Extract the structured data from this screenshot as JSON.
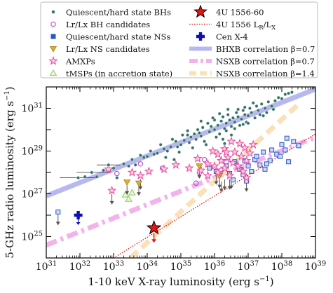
{
  "chart_data": {
    "type": "scatter",
    "xlabel_main": "1-10 keV X-ray luminosity (erg s",
    "xlabel_sup": "−1",
    "xlabel_end": ")",
    "ylabel_main": "5-GHz radio luminosity (erg s",
    "ylabel_sup": "−1",
    "ylabel_end": ")",
    "xlog": true,
    "ylog": true,
    "xlim_exp": [
      31,
      39
    ],
    "ylim_exp": [
      24,
      32
    ],
    "x_ticks": [
      {
        "exp": 31,
        "label": "31"
      },
      {
        "exp": 32,
        "label": "32"
      },
      {
        "exp": 33,
        "label": "33"
      },
      {
        "exp": 34,
        "label": "34"
      },
      {
        "exp": 35,
        "label": "35"
      },
      {
        "exp": 36,
        "label": "36"
      },
      {
        "exp": 37,
        "label": "37"
      },
      {
        "exp": 38,
        "label": "38"
      },
      {
        "exp": 39,
        "label": "39"
      }
    ],
    "y_ticks": [
      {
        "exp": 25,
        "label": "25"
      },
      {
        "exp": 27,
        "label": "27"
      },
      {
        "exp": 29,
        "label": "29"
      },
      {
        "exp": 31,
        "label": "31"
      }
    ],
    "tick_base": "10",
    "legend": {
      "placement": "top, above plot",
      "left_col": [
        {
          "key": "bh",
          "label": "Quiescent/hard state BHs"
        },
        {
          "key": "bhc",
          "label": "Lr/Lx BH candidates"
        },
        {
          "key": "ns",
          "label": "Quiescent/hard state NSs"
        },
        {
          "key": "nsc",
          "label": "Lr/Lx NS candidates"
        },
        {
          "key": "amxp",
          "label": "AMXPs"
        },
        {
          "key": "tmsp",
          "label": "tMSPs (in accretion state)"
        }
      ],
      "right_col": [
        {
          "key": "star",
          "label": "4U 1556-60"
        },
        {
          "key": "ratio",
          "label_main": "4U 1556 L",
          "label_r": "R",
          "label_slash": "/L",
          "label_x": "X"
        },
        {
          "key": "cen",
          "label": "Cen X-4"
        },
        {
          "key": "bhxb",
          "label": "BHXB correlation β=0.7"
        },
        {
          "key": "nsxb07",
          "label": "NSXB correlation β=0.7"
        },
        {
          "key": "nsxb14",
          "label": "NSXB correlation β=1.4"
        }
      ]
    },
    "colors": {
      "bh_fill": "#3d6b66",
      "bh_edge": "#bfe6e2",
      "bhc": "#b040c0",
      "ns": "#2a55cc",
      "ns_fill": "#cdd9f5",
      "nsc": "#e0b020",
      "amxp": "#ee4499",
      "tmsp": "#8ccc55",
      "star_fill": "#e01818",
      "ratio_line": "#e81010",
      "cen": "#1010b0",
      "bhxb": "#b8b8f0",
      "nsxb07": "#f4b2ec",
      "nsxb14": "#fbe0b8",
      "arrow": "#555555"
    },
    "lines": [
      {
        "key": "bhxb",
        "beta": 0.7,
        "points": [
          [
            31.0,
            26.9
          ],
          [
            39.0,
            31.9
          ]
        ]
      },
      {
        "key": "nsxb07",
        "beta": 0.7,
        "points": [
          [
            31.0,
            24.6
          ],
          [
            39.0,
            29.65
          ]
        ]
      },
      {
        "key": "nsxb14",
        "beta": 1.4,
        "points": [
          [
            33.5,
            24.0
          ],
          [
            38.5,
            31.2
          ]
        ]
      },
      {
        "key": "ratio",
        "points": [
          [
            33.0,
            24.0
          ],
          [
            39.0,
            29.8
          ]
        ]
      }
    ],
    "series": {
      "bh": [
        [
          31.95,
          27.75
        ],
        [
          32.15,
          27.8
        ],
        [
          32.35,
          28.0
        ],
        [
          32.5,
          27.8
        ],
        [
          32.7,
          28.1
        ],
        [
          32.85,
          28.35
        ],
        [
          33.0,
          28.2
        ],
        [
          33.1,
          27.75
        ],
        [
          33.3,
          28.4
        ],
        [
          33.45,
          28.3
        ],
        [
          33.55,
          28.6
        ],
        [
          33.65,
          28.35
        ],
        [
          33.8,
          28.8
        ],
        [
          33.9,
          28.7
        ],
        [
          34.0,
          28.75
        ],
        [
          34.1,
          29.0
        ],
        [
          34.2,
          28.85
        ],
        [
          34.3,
          28.9
        ],
        [
          34.4,
          29.3
        ],
        [
          34.5,
          29.1
        ],
        [
          34.6,
          29.0
        ],
        [
          34.7,
          29.2
        ],
        [
          34.75,
          29.55
        ],
        [
          34.85,
          29.45
        ],
        [
          34.9,
          29.2
        ],
        [
          35.0,
          29.3
        ],
        [
          35.1,
          29.5
        ],
        [
          35.2,
          29.75
        ],
        [
          35.25,
          29.4
        ],
        [
          35.3,
          29.65
        ],
        [
          35.4,
          29.8
        ],
        [
          35.45,
          29.55
        ],
        [
          35.5,
          30.0
        ],
        [
          35.6,
          29.7
        ],
        [
          35.65,
          30.1
        ],
        [
          35.7,
          29.45
        ],
        [
          35.8,
          30.3
        ],
        [
          35.85,
          29.9
        ],
        [
          35.9,
          30.15
        ],
        [
          36.0,
          30.0
        ],
        [
          36.0,
          30.45
        ],
        [
          36.1,
          30.2
        ],
        [
          36.15,
          29.8
        ],
        [
          36.2,
          30.4
        ],
        [
          36.25,
          30.6
        ],
        [
          36.3,
          30.05
        ],
        [
          36.35,
          30.3
        ],
        [
          36.4,
          30.7
        ],
        [
          36.45,
          30.45
        ],
        [
          36.5,
          30.15
        ],
        [
          36.55,
          30.55
        ],
        [
          36.6,
          30.35
        ],
        [
          36.65,
          30.8
        ],
        [
          36.7,
          30.6
        ],
        [
          36.75,
          30.2
        ],
        [
          36.8,
          30.5
        ],
        [
          36.85,
          30.9
        ],
        [
          36.9,
          30.7
        ],
        [
          36.95,
          30.35
        ],
        [
          37.0,
          30.65
        ],
        [
          37.05,
          31.0
        ],
        [
          37.1,
          30.8
        ],
        [
          37.2,
          30.55
        ],
        [
          37.25,
          31.1
        ],
        [
          37.3,
          30.9
        ],
        [
          37.35,
          30.7
        ],
        [
          37.4,
          31.2
        ],
        [
          37.5,
          31.0
        ],
        [
          37.55,
          30.8
        ],
        [
          37.6,
          31.3
        ],
        [
          37.7,
          31.1
        ],
        [
          37.8,
          31.35
        ],
        [
          37.9,
          31.5
        ],
        [
          38.0,
          31.45
        ],
        [
          38.1,
          31.65
        ],
        [
          38.2,
          31.7
        ],
        [
          38.3,
          31.75
        ],
        [
          35.2,
          29.95
        ],
        [
          35.55,
          29.85
        ],
        [
          35.95,
          30.55
        ],
        [
          36.05,
          29.65
        ],
        [
          36.35,
          29.95
        ],
        [
          36.6,
          30.05
        ],
        [
          36.4,
          30.95
        ],
        [
          36.9,
          31.05
        ],
        [
          37.15,
          31.25
        ],
        [
          37.45,
          30.65
        ],
        [
          37.75,
          30.95
        ],
        [
          36.25,
          29.55
        ],
        [
          35.75,
          29.3
        ],
        [
          35.35,
          29.15
        ],
        [
          34.95,
          28.95
        ],
        [
          34.55,
          28.7
        ],
        [
          35.05,
          29.75
        ],
        [
          36.7,
          30.95
        ],
        [
          36.15,
          30.75
        ],
        [
          36.5,
          29.75
        ],
        [
          36.85,
          30.25
        ],
        [
          37.0,
          30.3
        ],
        [
          36.3,
          29.35
        ],
        [
          35.6,
          30.4
        ],
        [
          34.8,
          28.6
        ]
      ],
      "bh_xerr": [
        [
          31.95,
          27.75,
          31.4,
          32.55
        ],
        [
          32.35,
          28.0,
          31.9,
          32.9
        ],
        [
          32.85,
          28.35,
          32.5,
          33.2
        ]
      ],
      "bhc": [
        [
          33.8,
          28.4
        ],
        [
          34.45,
          28.2
        ],
        [
          35.7,
          28.6
        ],
        [
          36.2,
          28.1
        ],
        [
          36.35,
          28.5
        ],
        [
          35.55,
          28.0
        ],
        [
          35.45,
          27.5
        ],
        [
          33.1,
          27.95
        ]
      ],
      "ns": [
        [
          36.35,
          28.3
        ],
        [
          36.45,
          27.95
        ],
        [
          36.6,
          28.5
        ],
        [
          36.75,
          28.15
        ],
        [
          36.85,
          27.9
        ],
        [
          36.9,
          28.55
        ],
        [
          37.0,
          28.3
        ],
        [
          37.1,
          28.05
        ],
        [
          37.2,
          28.6
        ],
        [
          37.25,
          28.75
        ],
        [
          37.35,
          28.35
        ],
        [
          37.45,
          28.95
        ],
        [
          37.5,
          28.15
        ],
        [
          37.65,
          28.55
        ],
        [
          37.7,
          29.05
        ],
        [
          37.85,
          28.85
        ],
        [
          38.0,
          29.3
        ],
        [
          38.1,
          29.05
        ],
        [
          38.2,
          28.5
        ],
        [
          38.35,
          29.45
        ],
        [
          38.5,
          29.25
        ],
        [
          36.55,
          27.65
        ],
        [
          36.95,
          27.6
        ],
        [
          35.85,
          28.2
        ],
        [
          36.05,
          28.05
        ],
        [
          37.55,
          28.4
        ],
        [
          38.15,
          29.6
        ],
        [
          37.95,
          28.75
        ],
        [
          31.35,
          26.15
        ]
      ],
      "ns_uplim": [
        [
          31.35,
          26.15
        ],
        [
          36.05,
          28.05
        ],
        [
          36.2,
          27.7
        ],
        [
          36.3,
          27.8
        ],
        [
          36.5,
          27.85
        ]
      ],
      "nsc": [
        [
          33.4,
          27.55
        ],
        [
          33.75,
          27.5
        ],
        [
          35.55,
          28.3
        ],
        [
          36.15,
          27.85
        ]
      ],
      "amxp": [
        [
          33.55,
          28.0
        ],
        [
          33.8,
          27.85
        ],
        [
          34.05,
          28.05
        ],
        [
          34.5,
          28.15
        ],
        [
          34.85,
          28.35
        ],
        [
          35.25,
          28.2
        ],
        [
          35.6,
          28.1
        ],
        [
          35.8,
          28.4
        ],
        [
          36.0,
          28.3
        ],
        [
          36.1,
          28.0
        ],
        [
          36.2,
          28.55
        ],
        [
          36.3,
          28.2
        ],
        [
          36.4,
          28.7
        ],
        [
          36.45,
          27.85
        ],
        [
          36.55,
          28.45
        ],
        [
          36.6,
          28.95
        ],
        [
          36.7,
          28.3
        ],
        [
          36.8,
          28.75
        ],
        [
          36.9,
          29.15
        ],
        [
          36.95,
          28.55
        ],
        [
          37.05,
          28.9
        ],
        [
          37.15,
          29.3
        ],
        [
          35.95,
          29.0
        ],
        [
          36.1,
          28.85
        ],
        [
          36.3,
          29.1
        ],
        [
          36.5,
          29.45
        ],
        [
          36.75,
          29.35
        ],
        [
          36.35,
          28.95
        ],
        [
          35.8,
          27.85
        ],
        [
          36.85,
          28.05
        ],
        [
          36.95,
          27.75
        ],
        [
          32.95,
          27.15
        ],
        [
          32.85,
          28.15
        ],
        [
          35.5,
          28.65
        ]
      ],
      "amxp_uplim": [
        [
          32.95,
          27.15
        ],
        [
          33.8,
          27.85
        ],
        [
          36.45,
          27.85
        ],
        [
          36.95,
          27.75
        ]
      ],
      "tmsp": [
        [
          33.35,
          26.95
        ],
        [
          33.45,
          26.75
        ],
        [
          33.55,
          27.05
        ]
      ],
      "star": [
        [
          34.2,
          25.4
        ]
      ],
      "cen": [
        [
          31.95,
          26.0
        ]
      ]
    }
  }
}
